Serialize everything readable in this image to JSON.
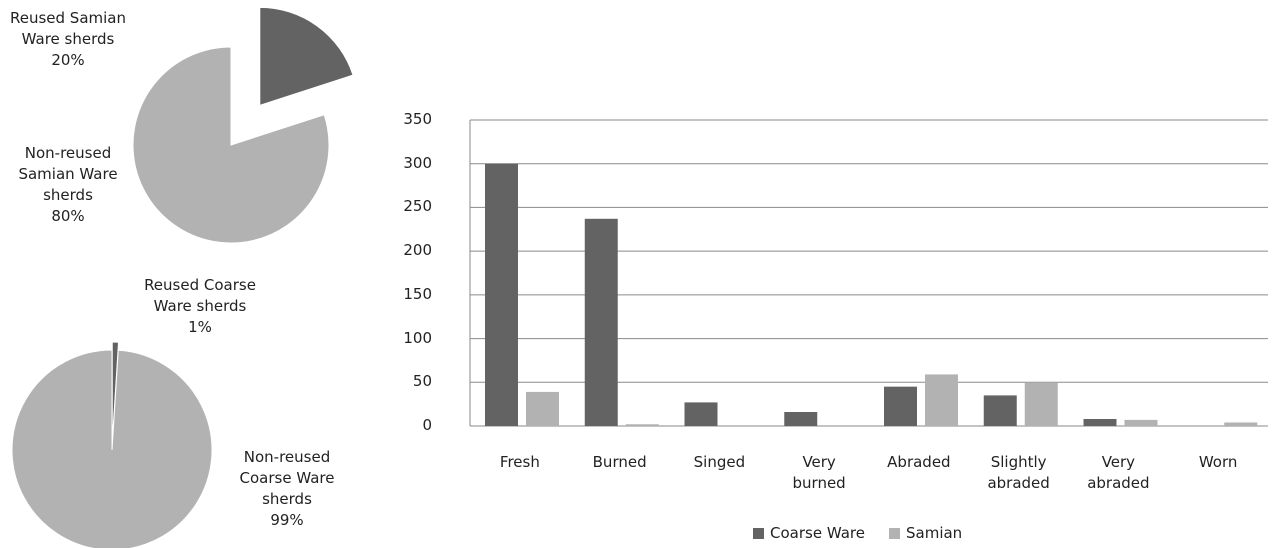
{
  "chart_data": [
    {
      "type": "pie",
      "categories": [
        "Reused Samian Ware sherds",
        "Non-reused Samian Ware sherds"
      ],
      "values": [
        20,
        80
      ],
      "value_labels": [
        "20%",
        "80%"
      ],
      "colors": [
        "#636363",
        "#b2b2b2"
      ]
    },
    {
      "type": "pie",
      "categories": [
        "Reused Coarse Ware sherds",
        "Non-reused Coarse Ware sherds"
      ],
      "values": [
        1,
        99
      ],
      "value_labels": [
        "1%",
        "99%"
      ],
      "colors": [
        "#636363",
        "#b2b2b2"
      ]
    },
    {
      "type": "bar",
      "categories": [
        "Fresh",
        "Burned",
        "Singed",
        "Very burned",
        "Abraded",
        "Slightly abraded",
        "Very abraded",
        "Worn"
      ],
      "series": [
        {
          "name": "Coarse Ware",
          "color": "#636363",
          "values": [
            300,
            237,
            27,
            16,
            45,
            35,
            8,
            0
          ]
        },
        {
          "name": "Samian",
          "color": "#b2b2b2",
          "values": [
            39,
            2,
            0,
            0,
            59,
            50,
            7,
            4
          ]
        }
      ],
      "ylim": [
        0,
        350
      ],
      "yticks": [
        0,
        50,
        100,
        150,
        200,
        250,
        300,
        350
      ],
      "grid": true,
      "legend": "bottom"
    }
  ]
}
